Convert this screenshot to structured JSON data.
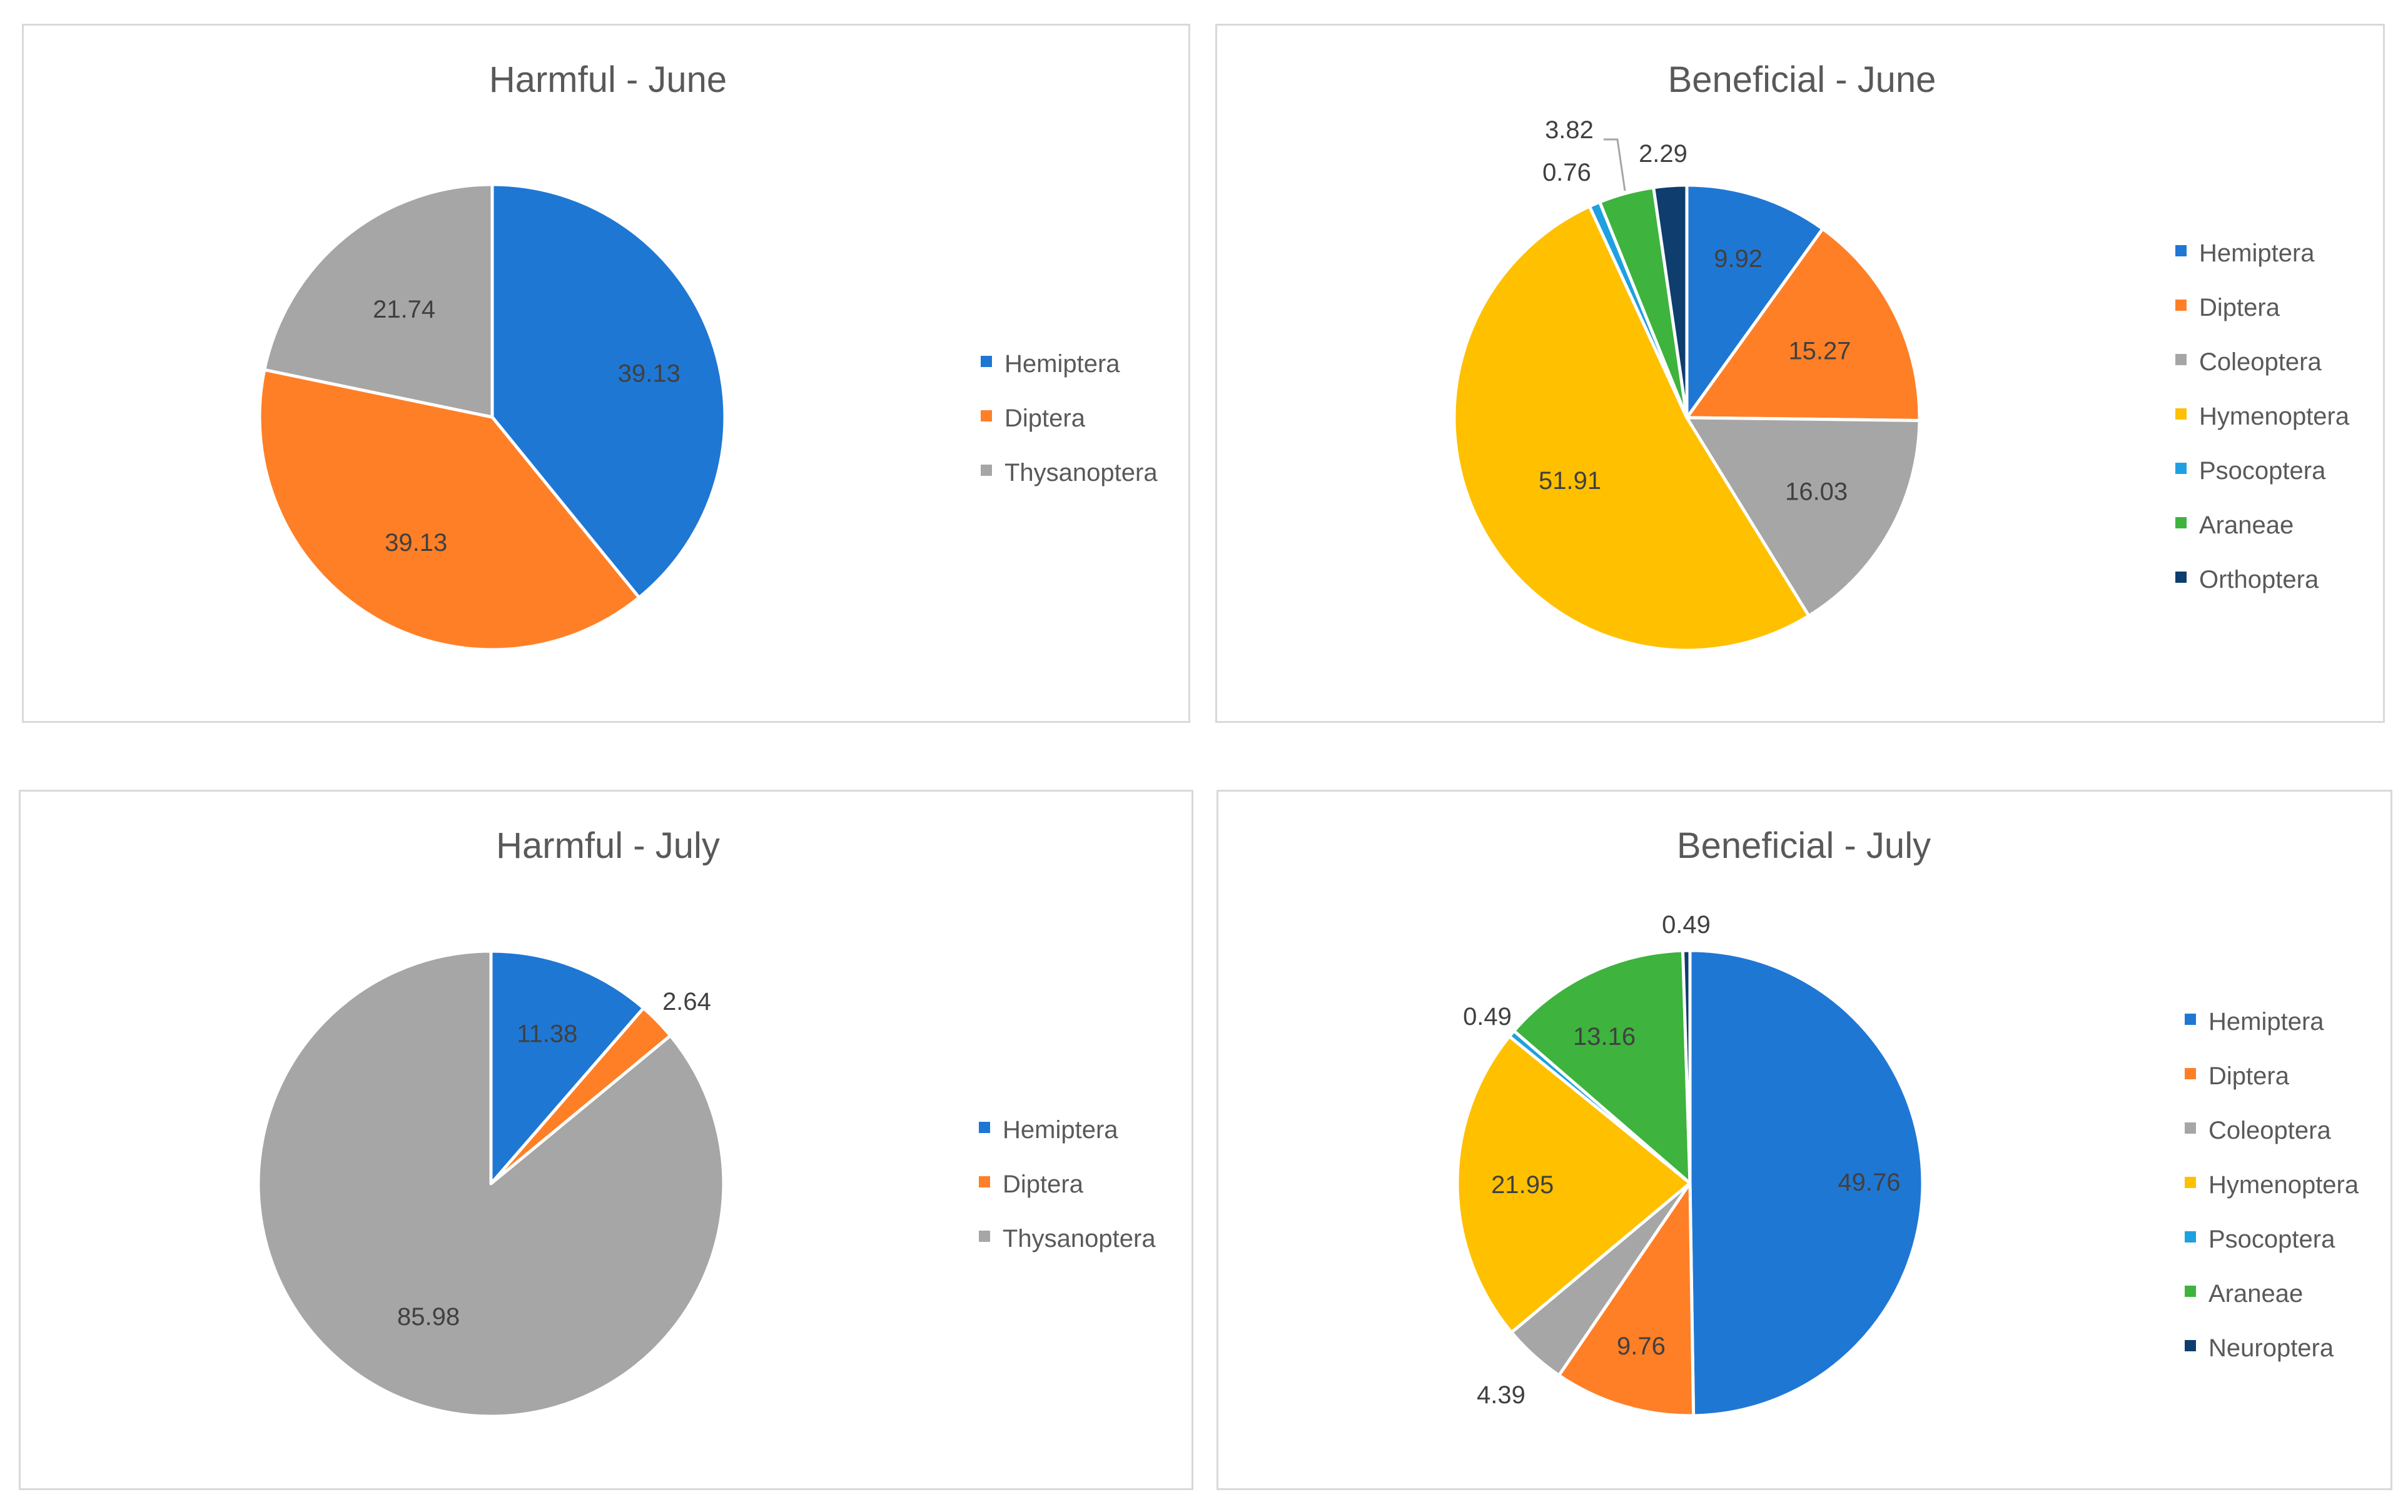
{
  "chart_data": [
    {
      "type": "pie",
      "title": "Harmful - June",
      "categories": [
        "Hemiptera",
        "Diptera",
        "Thysanoptera"
      ],
      "values": [
        39.13,
        39.13,
        21.74
      ],
      "labels": [
        "39.13",
        "39.13",
        "21.74"
      ],
      "colors": [
        "#1f77d4",
        "#ff7f27",
        "#a6a6a6"
      ],
      "legend": [
        "Hemiptera",
        "Diptera",
        "Thysanoptera"
      ],
      "legend_colors": [
        "#1f77d4",
        "#ff7f27",
        "#a6a6a6"
      ],
      "legend_position": "right"
    },
    {
      "type": "pie",
      "title": "Beneficial - June",
      "categories": [
        "Hemiptera",
        "Diptera",
        "Coleoptera",
        "Hymenoptera",
        "Psocoptera",
        "Araneae",
        "Orthoptera"
      ],
      "values": [
        9.92,
        15.27,
        16.03,
        51.91,
        0.76,
        3.82,
        2.29
      ],
      "labels": [
        "9.92",
        "15.27",
        "16.03",
        "51.91",
        "0.76",
        "3.82",
        "2.29"
      ],
      "colors": [
        "#1f77d4",
        "#ff7f27",
        "#a6a6a6",
        "#ffc000",
        "#1fa0e0",
        "#3eb33e",
        "#0e3d6e"
      ],
      "legend": [
        "Hemiptera",
        "Diptera",
        "Coleoptera",
        "Hymenoptera",
        "Psocoptera",
        "Araneae",
        "Orthoptera"
      ],
      "legend_colors": [
        "#1f77d4",
        "#ff7f27",
        "#a6a6a6",
        "#ffc000",
        "#1fa0e0",
        "#3eb33e",
        "#0e3d6e"
      ],
      "legend_position": "right"
    },
    {
      "type": "pie",
      "title": "Harmful - July",
      "categories": [
        "Hemiptera",
        "Diptera",
        "Thysanoptera"
      ],
      "values": [
        11.38,
        2.64,
        85.98
      ],
      "labels": [
        "11.38",
        "2.64",
        "85.98"
      ],
      "colors": [
        "#1f77d4",
        "#ff7f27",
        "#a6a6a6"
      ],
      "legend": [
        "Hemiptera",
        "Diptera",
        "Thysanoptera"
      ],
      "legend_colors": [
        "#1f77d4",
        "#ff7f27",
        "#a6a6a6"
      ],
      "legend_position": "right"
    },
    {
      "type": "pie",
      "title": "Beneficial - July",
      "categories": [
        "Hemiptera",
        "Diptera",
        "Coleoptera",
        "Hymenoptera",
        "Psocoptera",
        "Araneae",
        "Neuroptera"
      ],
      "values": [
        49.76,
        9.76,
        4.39,
        21.95,
        0.49,
        13.16,
        0.49
      ],
      "labels": [
        "49.76",
        "9.76",
        "4.39",
        "21.95",
        "0.49",
        "13.16",
        "0.49"
      ],
      "colors": [
        "#1f77d4",
        "#ff7f27",
        "#a6a6a6",
        "#ffc000",
        "#1fa0e0",
        "#3eb33e",
        "#0e3d6e"
      ],
      "legend": [
        "Hemiptera",
        "Diptera",
        "Coleoptera",
        "Hymenoptera",
        "Psocoptera",
        "Araneae",
        "Neuroptera"
      ],
      "legend_colors": [
        "#1f77d4",
        "#ff7f27",
        "#a6a6a6",
        "#ffc000",
        "#1fa0e0",
        "#3eb33e",
        "#0e3d6e"
      ],
      "legend_position": "right"
    }
  ]
}
